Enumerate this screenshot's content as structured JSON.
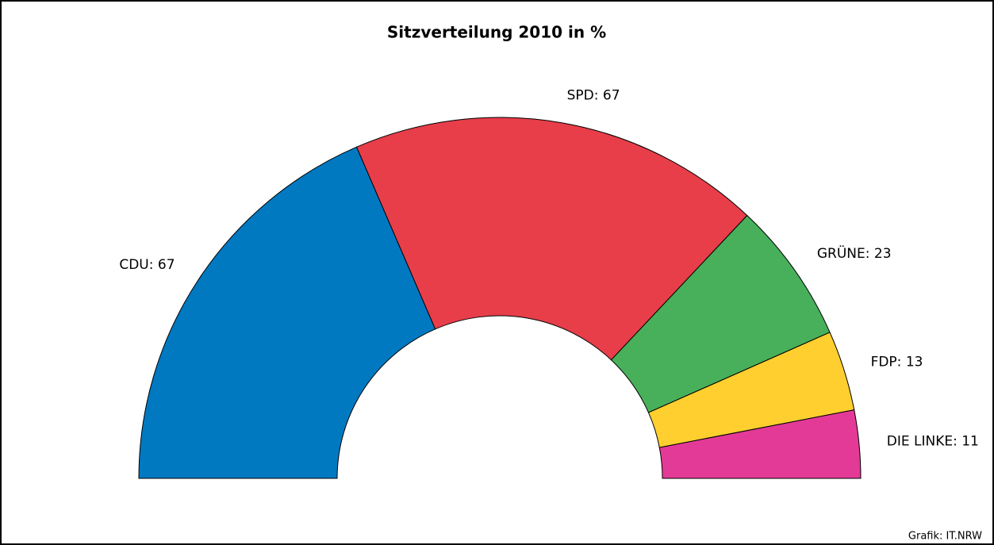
{
  "chart_data": {
    "type": "donut",
    "title": "Sitzverteilung 2010 in %",
    "values": [
      67,
      67,
      23,
      13,
      11
    ],
    "value_labels": [
      "CDU: 67",
      "SPD: 67",
      "GRÜNE: 23",
      "FDP: 13",
      "DIE LINKE: 11"
    ],
    "colors": [
      "#0079c1",
      "#e73e4a",
      "#48b05a",
      "#fecf2f",
      "#e43a97"
    ],
    "source": "Grafik: IT.NRW"
  }
}
